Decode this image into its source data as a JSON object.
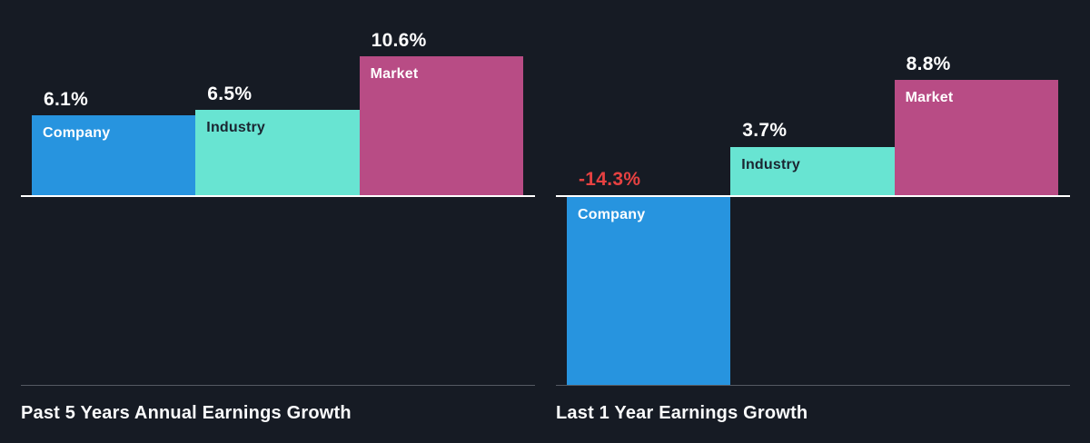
{
  "colors": {
    "background": "#161b24",
    "baseline": "#ffffff",
    "separator": "#555a62",
    "positive_value_text": "#ffffff",
    "negative_value_text": "#e64141",
    "company_bar": "#2794df",
    "industry_bar": "#68e4d2",
    "market_bar": "#b84c85"
  },
  "chart_data": [
    {
      "type": "bar",
      "title": "Past 5 Years Annual Earnings Growth",
      "xlabel": "",
      "ylabel": "",
      "unit": "%",
      "baseline": 0,
      "ylim": [
        -14.3,
        10.6
      ],
      "grid": false,
      "legend": "none",
      "categories": [
        "Company",
        "Industry",
        "Market"
      ],
      "values": [
        6.1,
        6.5,
        10.6
      ],
      "bars": [
        {
          "label": "Company",
          "value": 6.1,
          "display": "6.1%",
          "color": "#2794df",
          "label_color": "#ffffff",
          "value_color": "#ffffff"
        },
        {
          "label": "Industry",
          "value": 6.5,
          "display": "6.5%",
          "color": "#68e4d2",
          "label_color": "#1b2531",
          "value_color": "#ffffff"
        },
        {
          "label": "Market",
          "value": 10.6,
          "display": "10.6%",
          "color": "#b84c85",
          "label_color": "#ffffff",
          "value_color": "#ffffff"
        }
      ]
    },
    {
      "type": "bar",
      "title": "Last 1 Year Earnings Growth",
      "xlabel": "",
      "ylabel": "",
      "unit": "%",
      "baseline": 0,
      "ylim": [
        -14.3,
        10.6
      ],
      "grid": false,
      "legend": "none",
      "categories": [
        "Company",
        "Industry",
        "Market"
      ],
      "values": [
        -14.3,
        3.7,
        8.8
      ],
      "bars": [
        {
          "label": "Company",
          "value": -14.3,
          "display": "-14.3%",
          "color": "#2794df",
          "label_color": "#ffffff",
          "value_color": "#e64141"
        },
        {
          "label": "Industry",
          "value": 3.7,
          "display": "3.7%",
          "color": "#68e4d2",
          "label_color": "#1b2531",
          "value_color": "#ffffff"
        },
        {
          "label": "Market",
          "value": 8.8,
          "display": "8.8%",
          "color": "#b84c85",
          "label_color": "#ffffff",
          "value_color": "#ffffff"
        }
      ]
    }
  ]
}
